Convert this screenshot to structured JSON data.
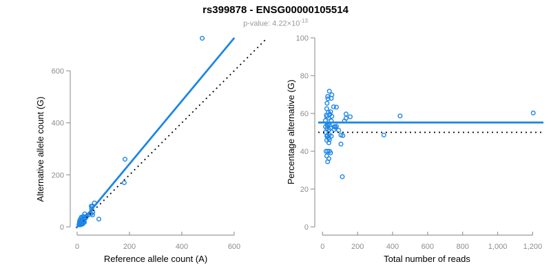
{
  "header": {
    "title": "rs399878 - ENSG00000105514",
    "p_value_prefix": "p-value: 4.22×10",
    "p_value_exponent": "-13"
  },
  "colors": {
    "accent_blue": "#1E86E6",
    "axis_line_gray": "#999999",
    "tick_label_gray": "#8C8C8C",
    "axis_title_black": "#000000",
    "dotted_black": "#000000"
  },
  "chart_data": {
    "type": "scatter",
    "title": "rs399878 - ENSG00000105514",
    "subtitle": "p-value: 4.22×10^-13",
    "legend": "none",
    "grid": false,
    "points_ref_alt": [
      [
        11,
        28
      ],
      [
        9,
        20
      ],
      [
        16,
        37
      ],
      [
        10,
        21
      ],
      [
        16,
        34
      ],
      [
        9,
        17
      ],
      [
        9,
        15
      ],
      [
        23,
        40
      ],
      [
        29,
        50
      ],
      [
        13,
        20
      ],
      [
        9,
        13
      ],
      [
        18,
        28
      ],
      [
        54,
        80
      ],
      [
        66,
        92
      ],
      [
        57,
        77
      ],
      [
        17,
        25
      ],
      [
        22,
        31
      ],
      [
        14,
        19
      ],
      [
        10,
        14
      ],
      [
        7,
        9
      ],
      [
        22,
        28
      ],
      [
        55,
        70
      ],
      [
        15,
        18
      ],
      [
        12,
        14
      ],
      [
        18,
        21
      ],
      [
        31,
        35
      ],
      [
        34,
        38
      ],
      [
        37,
        42
      ],
      [
        8,
        9
      ],
      [
        13,
        15
      ],
      [
        22,
        24
      ],
      [
        12,
        13
      ],
      [
        18,
        19
      ],
      [
        32,
        34
      ],
      [
        45,
        47
      ],
      [
        8,
        8
      ],
      [
        15,
        14
      ],
      [
        26,
        24
      ],
      [
        20,
        19
      ],
      [
        13,
        12
      ],
      [
        54,
        51
      ],
      [
        60,
        56
      ],
      [
        18,
        16
      ],
      [
        13,
        11
      ],
      [
        21,
        18
      ],
      [
        20,
        16
      ],
      [
        59,
        46
      ],
      [
        18,
        12
      ],
      [
        24,
        16
      ],
      [
        12,
        8
      ],
      [
        28,
        18
      ],
      [
        15,
        9
      ],
      [
        23,
        13
      ],
      [
        19,
        10
      ],
      [
        83,
        30
      ],
      [
        180,
        170
      ],
      [
        183,
        260
      ],
      [
        478,
        725
      ]
    ],
    "panels": [
      {
        "id": "allele-counts",
        "xlabel": "Reference allele count (A)",
        "ylabel": "Alternative allele count (G)",
        "xlim": [
          0,
          600
        ],
        "ylim": [
          0,
          600
        ],
        "xticks": [
          0,
          200,
          400,
          600
        ],
        "xtick_labels": [
          "0",
          "200",
          "400",
          "600"
        ],
        "yticks": [
          0,
          200,
          400,
          600
        ],
        "ytick_labels": [
          "0",
          "200",
          "400",
          "600"
        ],
        "x_from": "ref",
        "y_from": "alt",
        "lines": [
          {
            "name": "identity-line",
            "kind": "through-origin",
            "slope": 1.0,
            "style": "dotted",
            "color": "black"
          },
          {
            "name": "fit-line",
            "kind": "through-origin",
            "slope": 1.21,
            "style": "solid",
            "color": "blue"
          }
        ]
      },
      {
        "id": "percentage-vs-depth",
        "xlabel": "Total number of reads",
        "ylabel": "Percentage alternative (G)",
        "xlim": [
          0,
          1200
        ],
        "ylim": [
          0,
          100
        ],
        "xticks": [
          0,
          200,
          400,
          600,
          800,
          1000,
          1200
        ],
        "xtick_labels": [
          "0",
          "200",
          "400",
          "600",
          "800",
          "1,000",
          "1,200"
        ],
        "yticks": [
          0,
          20,
          40,
          60,
          80,
          100
        ],
        "ytick_labels": [
          "0",
          "20",
          "40",
          "60",
          "80",
          "100"
        ],
        "x_from": "total",
        "y_from": "pct",
        "lines": [
          {
            "name": "null-line",
            "kind": "horizontal",
            "y": 50,
            "style": "dotted",
            "color": "black"
          },
          {
            "name": "fit-line",
            "kind": "horizontal",
            "y": 55.2,
            "style": "solid",
            "color": "blue"
          }
        ]
      }
    ]
  }
}
